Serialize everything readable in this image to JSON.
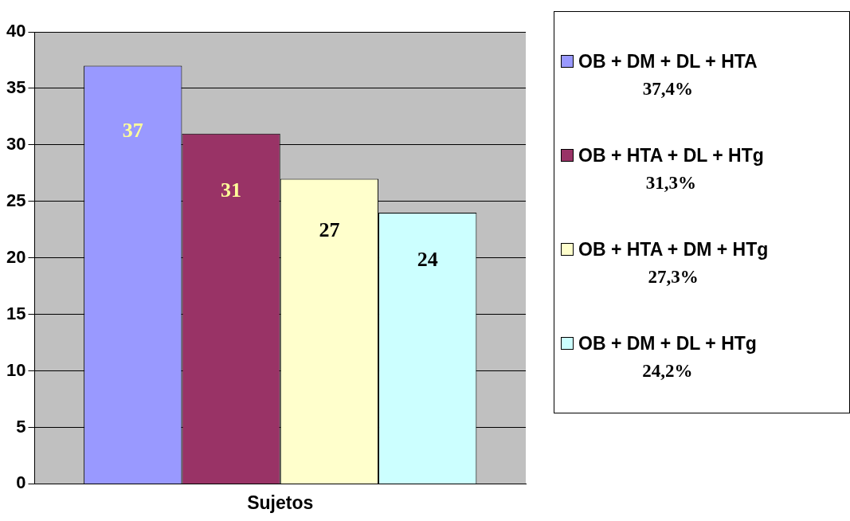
{
  "chart_data": {
    "type": "bar",
    "categories": [
      "Sujetos"
    ],
    "series": [
      {
        "name": "OB + DM + DL + HTA\n37,4%",
        "color": "#9999ff",
        "values": [
          37
        ]
      },
      {
        "name": "OB + HTA + DL + HTg\n31,3%",
        "color": "#993366",
        "values": [
          31
        ]
      },
      {
        "name": "OB + HTA + DM + HTg\n27,3%",
        "color": "#ffffcc",
        "values": [
          27
        ]
      },
      {
        "name": "OB + DM + DL + HTg\n24,2%",
        "color": "#ccffff",
        "values": [
          24
        ]
      }
    ],
    "ylim": [
      0,
      40
    ],
    "yticks": [
      0,
      5,
      10,
      15,
      20,
      25,
      30,
      35,
      40
    ],
    "grid": "y",
    "legend": "right",
    "data_labels": true
  }
}
